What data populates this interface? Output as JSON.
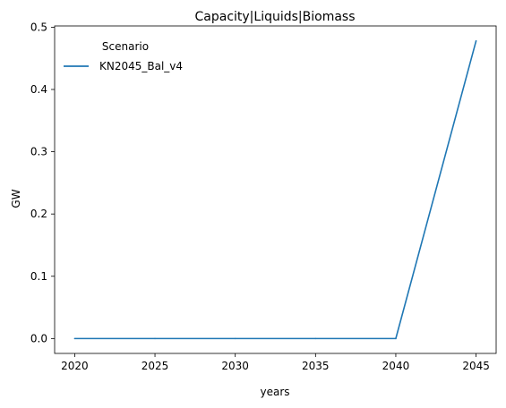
{
  "chart_data": {
    "type": "line",
    "title": "Capacity|Liquids|Biomass",
    "xlabel": "years",
    "ylabel": "GW",
    "x": [
      2020,
      2025,
      2030,
      2035,
      2040,
      2045
    ],
    "xticks": [
      2020,
      2025,
      2030,
      2035,
      2040,
      2045
    ],
    "yticks": [
      0.0,
      0.1,
      0.2,
      0.3,
      0.4,
      0.5
    ],
    "ytick_labels": [
      "0.0",
      "0.1",
      "0.2",
      "0.3",
      "0.4",
      "0.5"
    ],
    "xlim": [
      2018.75,
      2046.25
    ],
    "ylim": [
      -0.0239,
      0.502
    ],
    "grid": false,
    "legend": {
      "title": "Scenario",
      "placement": "top-left"
    },
    "series": [
      {
        "name": "KN2045_Bal_v4",
        "color": "#1f77b4",
        "values": [
          0.0,
          0.0,
          0.0,
          0.0,
          0.0,
          0.478
        ]
      }
    ]
  }
}
